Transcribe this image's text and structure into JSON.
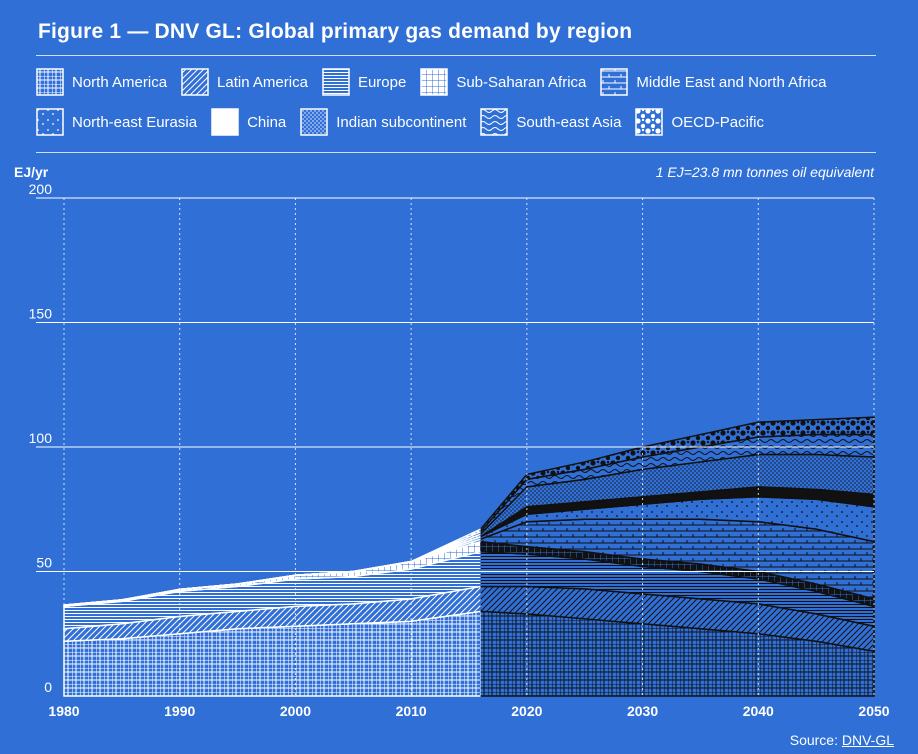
{
  "header": {
    "title": "Figure 1 — DNV GL: Global primary gas demand by region",
    "unit_label": "EJ/yr",
    "note": "1 EJ=23.8 mn tonnes oil equivalent",
    "source_prefix": "Source: ",
    "source_link": "DNV-GL"
  },
  "colors": {
    "background": "#2f6fd6",
    "foreground": "#ffffff",
    "forecast_ink": "#111111"
  },
  "legend": [
    {
      "label": "North America",
      "icon": "grid-pattern-icon"
    },
    {
      "label": "Latin America",
      "icon": "diagonal-hatch-icon"
    },
    {
      "label": "Europe",
      "icon": "horizontal-lines-icon"
    },
    {
      "label": "Sub-Saharan Africa",
      "icon": "dense-grid-icon"
    },
    {
      "label": "Middle East and North Africa",
      "icon": "brick-pattern-icon"
    },
    {
      "label": "North-east Eurasia",
      "icon": "sparse-dots-icon"
    },
    {
      "label": "China",
      "icon": "solid-fill-icon"
    },
    {
      "label": "Indian subcontinent",
      "icon": "dense-dots-icon"
    },
    {
      "label": "South-east Asia",
      "icon": "wavy-lines-icon"
    },
    {
      "label": "OECD-Pacific",
      "icon": "circles-pattern-icon"
    }
  ],
  "chart_data": {
    "type": "area",
    "stacked": true,
    "ylabel": "EJ/yr",
    "ylim": [
      0,
      200
    ],
    "yticks": [
      0,
      50,
      100,
      150,
      200
    ],
    "xlim": [
      1980,
      2050
    ],
    "xticks": [
      1980,
      1990,
      2000,
      2010,
      2020,
      2030,
      2040,
      2050
    ],
    "history_end": 2016,
    "grid": true,
    "legend_position": "top",
    "x": [
      1980,
      1985,
      1990,
      1995,
      2000,
      2005,
      2010,
      2016,
      2020,
      2025,
      2030,
      2035,
      2040,
      2045,
      2050
    ],
    "series": [
      {
        "name": "North America",
        "values": [
          22,
          23,
          25,
          27,
          28,
          29,
          30,
          34,
          33,
          31,
          29,
          27,
          25,
          22,
          18
        ]
      },
      {
        "name": "Latin America",
        "values": [
          5,
          6,
          7,
          7,
          8,
          8,
          9,
          10,
          11,
          12,
          12,
          12,
          12,
          11,
          10
        ]
      },
      {
        "name": "Europe",
        "values": [
          9,
          9,
          10,
          10,
          11,
          11,
          12,
          14,
          13,
          12,
          11,
          11,
          10,
          9,
          8
        ]
      },
      {
        "name": "Sub-Saharan Africa",
        "values": [
          0.5,
          0.6,
          0.8,
          1,
          1.5,
          2,
          3,
          4,
          3,
          3,
          3,
          3,
          3,
          3,
          3
        ]
      },
      {
        "name": "Middle East and North Africa",
        "values": [
          0,
          0,
          0,
          0,
          0,
          0,
          0,
          1,
          10,
          13,
          16,
          18,
          20,
          22,
          23
        ]
      },
      {
        "name": "North-east Eurasia",
        "values": [
          0,
          0,
          0,
          0,
          0,
          0,
          0,
          1,
          3,
          4,
          6,
          8,
          10,
          12,
          14
        ]
      },
      {
        "name": "China",
        "values": [
          0,
          0,
          0,
          0,
          0,
          0,
          0,
          0,
          3,
          3,
          3,
          3,
          4,
          4,
          5
        ]
      },
      {
        "name": "Indian subcontinent",
        "values": [
          0,
          0,
          0,
          0,
          0,
          0,
          0,
          1,
          8,
          9,
          11,
          12,
          13,
          14,
          15
        ]
      },
      {
        "name": "South-east Asia",
        "values": [
          0,
          0,
          0,
          0,
          0,
          0,
          0,
          1,
          3,
          4,
          5,
          6,
          7,
          8,
          9
        ]
      },
      {
        "name": "OECD-Pacific",
        "values": [
          0,
          0,
          0,
          0,
          0,
          0,
          0,
          1,
          2,
          3,
          4,
          5,
          6,
          6,
          7
        ]
      }
    ]
  }
}
